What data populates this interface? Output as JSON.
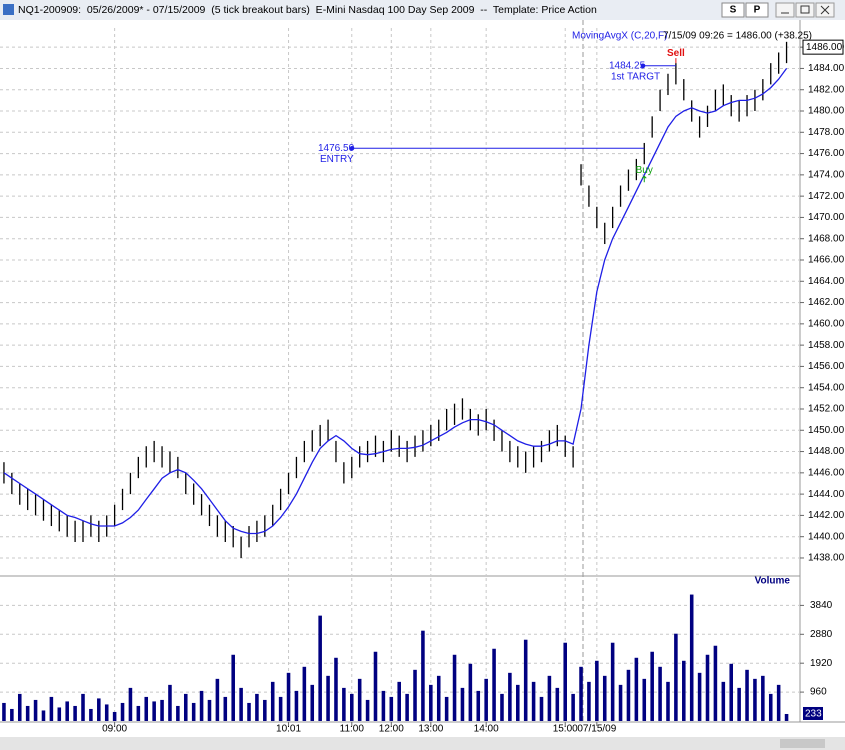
{
  "window": {
    "title": "NQ1-200909:  05/26/2009* - 07/15/2009  (5 tick breakout bars)  E-Mini Nasdaq 100 Day Sep 2009  --  Template: Price Action",
    "buttons": [
      "S",
      "P"
    ]
  },
  "chart_data": [
    {
      "type": "hilo",
      "title": "MovingAvgX (C,20,F)",
      "info": "7/15/09 09:26 = 1486.00 (+38.25)",
      "bar_color": "#000000",
      "high": [
        1447,
        1446,
        1445,
        1444.5,
        1444,
        1443.5,
        1443,
        1442.5,
        1442,
        1441.5,
        1441.5,
        1442,
        1441.5,
        1442,
        1443,
        1444.5,
        1446,
        1447.5,
        1448.5,
        1449,
        1448.5,
        1448,
        1447.5,
        1446,
        1445,
        1444,
        1443,
        1442,
        1441.5,
        1441,
        1440,
        1441,
        1441.5,
        1442,
        1443,
        1444.5,
        1446,
        1447.5,
        1449,
        1450,
        1450.5,
        1451,
        1449,
        1447,
        1447.5,
        1448.5,
        1449,
        1449.5,
        1449,
        1450,
        1449.5,
        1449,
        1449.5,
        1450,
        1450.5,
        1451,
        1452,
        1452.5,
        1453,
        1452,
        1451.5,
        1452,
        1451,
        1450,
        1449,
        1448.5,
        1448,
        1448.5,
        1449,
        1450,
        1450.5,
        1449.5,
        1448.5,
        1475,
        1473,
        1471,
        1469.5,
        1471,
        1473,
        1474.5,
        1475.5,
        1477,
        1479.5,
        1482,
        1483.5,
        1484.5,
        1483,
        1481,
        1479.5,
        1480.5,
        1482,
        1482.5,
        1481.5,
        1481,
        1481.5,
        1482,
        1483,
        1484.5,
        1485.5,
        1486.5
      ],
      "low": [
        1445,
        1444,
        1443,
        1442.5,
        1442,
        1441.5,
        1441,
        1440.5,
        1440,
        1439.5,
        1439.5,
        1440,
        1439.5,
        1440,
        1441,
        1442.5,
        1444,
        1445.5,
        1446.5,
        1447,
        1446.5,
        1446,
        1445.5,
        1444,
        1443,
        1442,
        1441,
        1440,
        1439.5,
        1439,
        1438,
        1439,
        1439.5,
        1440,
        1441,
        1442.5,
        1444,
        1445.5,
        1447,
        1448,
        1448.5,
        1449,
        1447,
        1445,
        1445.5,
        1446.5,
        1447,
        1447.5,
        1447,
        1448,
        1447.5,
        1447,
        1447.5,
        1448,
        1448.5,
        1449,
        1450,
        1450.5,
        1451,
        1450,
        1449.5,
        1450,
        1449,
        1448,
        1447,
        1446.5,
        1446,
        1446.5,
        1447,
        1448,
        1448.5,
        1447.5,
        1446.5,
        1473,
        1471,
        1469,
        1467.5,
        1469,
        1471,
        1472.5,
        1473.5,
        1475,
        1477.5,
        1480,
        1481.5,
        1482.5,
        1481,
        1479,
        1477.5,
        1478.5,
        1480,
        1480.5,
        1479.5,
        1479,
        1479.5,
        1480,
        1481,
        1482.5,
        1483.5,
        1484.5
      ],
      "indicator": {
        "name": "MovingAvgX (C,20,F)",
        "color": "#1f1fe6",
        "values": [
          1446,
          1445.5,
          1445,
          1444.5,
          1444,
          1443.5,
          1443,
          1442.5,
          1442,
          1441.8,
          1441.5,
          1441.2,
          1441,
          1441,
          1441,
          1441.3,
          1441.8,
          1442.5,
          1443.5,
          1444.5,
          1445.5,
          1446,
          1446.3,
          1446,
          1445.3,
          1444.5,
          1443.5,
          1442.5,
          1441.5,
          1440.8,
          1440.5,
          1440.3,
          1440.3,
          1440.5,
          1441,
          1441.8,
          1442.8,
          1444,
          1445.5,
          1447,
          1448.3,
          1449,
          1449.5,
          1449,
          1448.3,
          1447.8,
          1447.7,
          1447.8,
          1448,
          1448.2,
          1448.3,
          1448.3,
          1448.4,
          1448.6,
          1449,
          1449.4,
          1449.8,
          1450.3,
          1450.7,
          1451,
          1451,
          1450.8,
          1450.5,
          1450,
          1449.5,
          1449,
          1448.7,
          1448.5,
          1448.5,
          1448.7,
          1449,
          1449,
          1448.7,
          1452,
          1458,
          1463,
          1466,
          1468,
          1469.5,
          1471,
          1472.5,
          1474,
          1475.5,
          1477,
          1478.5,
          1479.5,
          1480,
          1480.3,
          1480,
          1479.8,
          1480,
          1480.5,
          1480.8,
          1481,
          1481,
          1481.2,
          1481.6,
          1482.2,
          1483,
          1484
        ]
      },
      "last_price": {
        "value": 1486,
        "label": "1486.00"
      },
      "entry": {
        "value": 1476.5,
        "label": "1476.50",
        "text": "ENTRY",
        "bar": 81
      },
      "target": {
        "value": 1484.25,
        "label": "1484.25",
        "text": "1st TARGT",
        "bar": 85
      },
      "signals": [
        {
          "text": "Buy",
          "bar": 81,
          "color": "#10a010"
        },
        {
          "text": "Sell",
          "bar": 85,
          "color": "#e01010"
        }
      ],
      "xlim": [
        -0.5,
        100.7
      ],
      "xticks": [
        {
          "value": 14,
          "label": "09:00"
        },
        {
          "value": 36,
          "label": "10:01"
        },
        {
          "value": 44,
          "label": "11:00"
        },
        {
          "value": 49,
          "label": "12:00"
        },
        {
          "value": 54,
          "label": "13:00"
        },
        {
          "value": 61,
          "label": "14:00"
        },
        {
          "value": 71,
          "label": "15:00"
        },
        {
          "value": 75,
          "label": "07/15/09"
        }
      ],
      "ylim": [
        1436.4,
        1487.8
      ],
      "yticks": [
        {
          "value": 1438,
          "label": "1438.00"
        },
        {
          "value": 1440,
          "label": "1440.00"
        },
        {
          "value": 1442,
          "label": "1442.00"
        },
        {
          "value": 1444,
          "label": "1444.00"
        },
        {
          "value": 1446,
          "label": "1446.00"
        },
        {
          "value": 1448,
          "label": "1448.00"
        },
        {
          "value": 1450,
          "label": "1450.00"
        },
        {
          "value": 1452,
          "label": "1452.00"
        },
        {
          "value": 1454,
          "label": "1454.00"
        },
        {
          "value": 1456,
          "label": "1456.00"
        },
        {
          "value": 1458,
          "label": "1458.00"
        },
        {
          "value": 1460,
          "label": "1460.00"
        },
        {
          "value": 1462,
          "label": "1462.00"
        },
        {
          "value": 1464,
          "label": "1464.00"
        },
        {
          "value": 1466,
          "label": "1466.00"
        },
        {
          "value": 1468,
          "label": "1468.00"
        },
        {
          "value": 1470,
          "label": "1470.00"
        },
        {
          "value": 1472,
          "label": "1472.00"
        },
        {
          "value": 1474,
          "label": "1474.00"
        },
        {
          "value": 1476,
          "label": "1476.00"
        },
        {
          "value": 1478,
          "label": "1478.00"
        },
        {
          "value": 1480,
          "label": "1480.00"
        },
        {
          "value": 1482,
          "label": "1482.00"
        },
        {
          "value": 1484,
          "label": "1484.00"
        },
        {
          "value": 1486,
          "label": "1486.00"
        }
      ],
      "grid": true
    },
    {
      "type": "bar",
      "title": "Volume",
      "color": "#000080",
      "values": [
        600,
        400,
        900,
        500,
        700,
        350,
        800,
        450,
        650,
        500,
        900,
        400,
        750,
        550,
        300,
        600,
        1100,
        500,
        800,
        650,
        700,
        1200,
        500,
        900,
        600,
        1000,
        700,
        1400,
        800,
        2200,
        1100,
        600,
        900,
        700,
        1300,
        800,
        1600,
        1000,
        1800,
        1200,
        3500,
        1500,
        2100,
        1100,
        900,
        1400,
        700,
        2300,
        1000,
        800,
        1300,
        900,
        1700,
        3000,
        1200,
        1500,
        800,
        2200,
        1100,
        1900,
        1000,
        1400,
        2400,
        900,
        1600,
        1200,
        2700,
        1300,
        800,
        1500,
        1100,
        2600,
        900,
        1800,
        1300,
        2000,
        1500,
        2600,
        1200,
        1700,
        2100,
        1400,
        2300,
        1800,
        1300,
        2900,
        2000,
        4200,
        1600,
        2200,
        2500,
        1300,
        1900,
        1100,
        1700,
        1400,
        1500,
        900,
        1200,
        233
      ],
      "ylim": [
        0,
        4750
      ],
      "yticks": [
        960,
        1920,
        2880,
        3840
      ],
      "grid": true
    }
  ]
}
